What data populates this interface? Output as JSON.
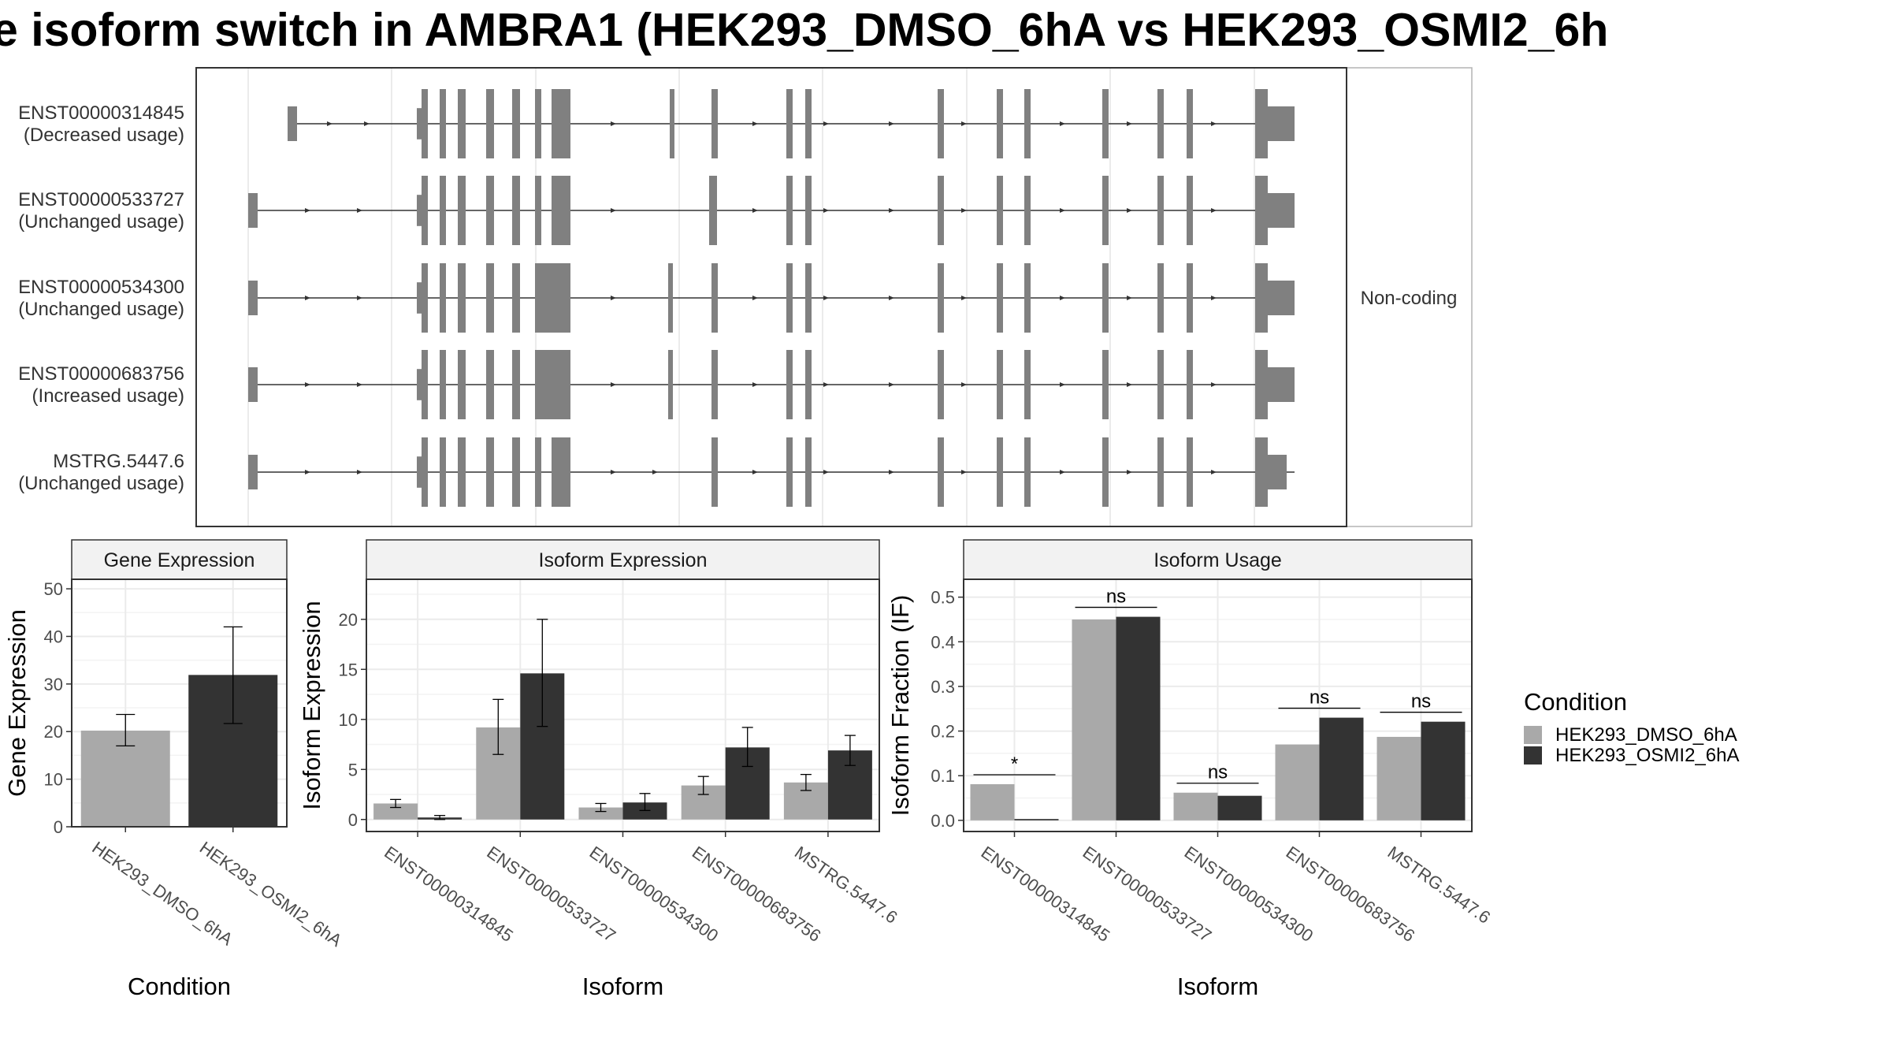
{
  "title": "e isoform switch in AMBRA1 (HEK293_DMSO_6hA vs HEK293_OSMI2_6h",
  "colors": {
    "dmso": "#a9a9a9",
    "osmi2": "#333333",
    "exon": "#808080",
    "grid": "#ebebeb",
    "panel_border": "#333333"
  },
  "structure_panel": {
    "facet_label": "Non-coding",
    "transcripts": [
      {
        "id": "ENST00000314845",
        "usage": "(Decreased usage)"
      },
      {
        "id": "ENST00000533727",
        "usage": "(Unchanged usage)"
      },
      {
        "id": "ENST00000534300",
        "usage": "(Unchanged usage)"
      },
      {
        "id": "ENST00000683756",
        "usage": "(Increased usage)"
      },
      {
        "id": "MSTRG.5447.6",
        "usage": "(Unchanged usage)"
      }
    ]
  },
  "legend": {
    "title": "Condition",
    "items": [
      "HEK293_DMSO_6hA",
      "HEK293_OSMI2_6hA"
    ]
  },
  "chart_data": [
    {
      "type": "bar",
      "title": "Gene Expression",
      "xlabel": "Condition",
      "ylabel": "Gene Expression",
      "ylim": [
        0,
        52
      ],
      "yticks": [
        0,
        10,
        20,
        30,
        40,
        50
      ],
      "categories": [
        "HEK293_DMSO_6hA",
        "HEK293_OSMI2_6hA"
      ],
      "values": [
        20.2,
        31.9
      ],
      "error_low": [
        17.0,
        21.7
      ],
      "error_high": [
        23.6,
        42.0
      ]
    },
    {
      "type": "bar",
      "title": "Isoform Expression",
      "xlabel": "Isoform",
      "ylabel": "Isoform Expression",
      "ylim": [
        -1.2,
        24
      ],
      "yticks": [
        0,
        5,
        10,
        15,
        20
      ],
      "categories": [
        "ENST00000314845",
        "ENST00000533727",
        "ENST00000534300",
        "ENST00000683756",
        "MSTRG.5447.6"
      ],
      "series": [
        {
          "name": "HEK293_DMSO_6hA",
          "values": [
            1.6,
            9.2,
            1.2,
            3.4,
            3.7
          ],
          "error_low": [
            1.2,
            6.5,
            0.8,
            2.5,
            2.9
          ],
          "error_high": [
            2.0,
            12.0,
            1.6,
            4.3,
            4.5
          ]
        },
        {
          "name": "HEK293_OSMI2_6hA",
          "values": [
            0.2,
            14.6,
            1.7,
            7.2,
            6.9
          ],
          "error_low": [
            0.0,
            9.3,
            0.9,
            5.3,
            5.4
          ],
          "error_high": [
            0.4,
            20.0,
            2.6,
            9.2,
            8.4
          ]
        }
      ]
    },
    {
      "type": "bar",
      "title": "Isoform Usage",
      "xlabel": "Isoform",
      "ylabel": "Isoform Fraction (IF)",
      "ylim": [
        -0.025,
        0.54
      ],
      "yticks": [
        0.0,
        0.1,
        0.2,
        0.3,
        0.4,
        0.5
      ],
      "ytick_labels": [
        "0.0",
        "0.1",
        "0.2",
        "0.3",
        "0.4",
        "0.5"
      ],
      "categories": [
        "ENST00000314845",
        "ENST00000533727",
        "ENST00000534300",
        "ENST00000683756",
        "MSTRG.5447.6"
      ],
      "series": [
        {
          "name": "HEK293_DMSO_6hA",
          "values": [
            0.081,
            0.45,
            0.062,
            0.17,
            0.187
          ]
        },
        {
          "name": "HEK293_OSMI2_6hA",
          "values": [
            0.003,
            0.456,
            0.055,
            0.23,
            0.221
          ]
        }
      ],
      "significance": [
        "*",
        "ns",
        "ns",
        "ns",
        "ns"
      ]
    }
  ]
}
